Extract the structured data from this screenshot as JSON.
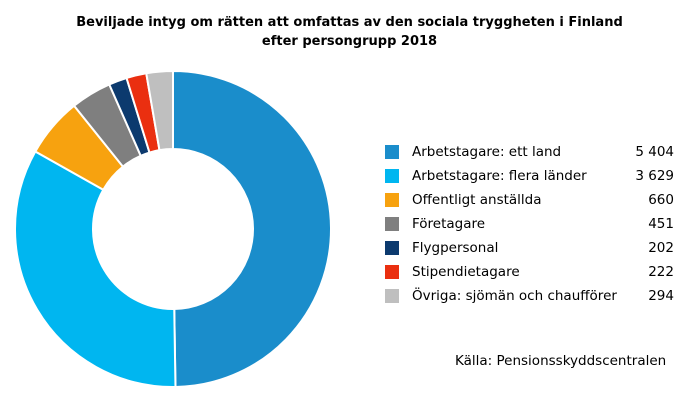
{
  "chart_data": {
    "type": "pie",
    "variant": "donut",
    "title_lines": [
      "Beviljade intyg om rätten att omfattas av den sociala tryggheten i Finland",
      "efter persongrupp 2018"
    ],
    "slices": [
      {
        "label": "Arbetstagare: ett land",
        "value": 5404,
        "value_text": "5 404",
        "color": "#1a8dcb"
      },
      {
        "label": "Arbetstagare: flera länder",
        "value": 3629,
        "value_text": "3 629",
        "color": "#00b6f0"
      },
      {
        "label": "Offentligt anställda",
        "value": 660,
        "value_text": "660",
        "color": "#f7a20f"
      },
      {
        "label": "Företagare",
        "value": 451,
        "value_text": "451",
        "color": "#7f7f7f"
      },
      {
        "label": "Flygpersonal",
        "value": 202,
        "value_text": "202",
        "color": "#0c3a6e"
      },
      {
        "label": "Stipendietagare",
        "value": 222,
        "value_text": "222",
        "color": "#ea2f10"
      },
      {
        "label": "Övriga: sjömän och chaufförer",
        "value": 294,
        "value_text": "294",
        "color": "#bfbfbf"
      }
    ],
    "legend_position": "right"
  },
  "source": "Källa: Pensionsskyddscentralen"
}
